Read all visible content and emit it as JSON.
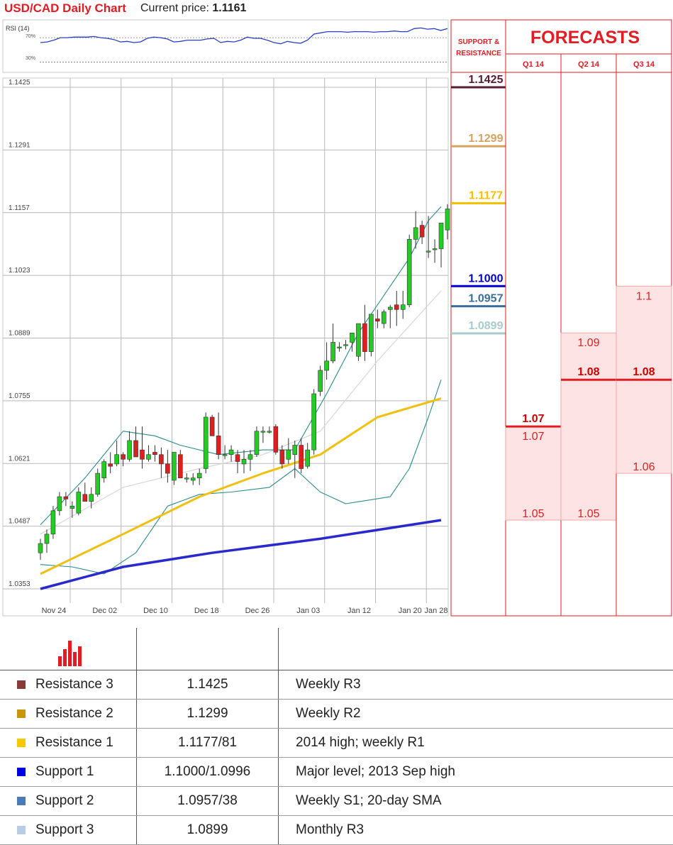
{
  "header": {
    "title": "USD/CAD Daily Chart",
    "price_label": "Current price:",
    "price_value": "1.1161"
  },
  "colors": {
    "accent": "#e31b23",
    "resistance_3": "#5a1a30",
    "resistance_2": "#d4a45e",
    "resistance_1": "#f5c000",
    "support_1": "#0000c8",
    "support_2": "#3a6e9a",
    "support_3": "#a8cccc",
    "sma_slow": "#2a2acc",
    "sma_mid": "#f0c010",
    "bull": "#22cc22",
    "bear": "#dd1f1f"
  },
  "rsi": {
    "label": "RSI (14)",
    "levels": [
      "70%",
      "30%"
    ],
    "values": [
      62,
      63,
      66,
      70,
      70,
      71,
      71,
      71,
      72,
      70,
      69,
      67,
      63,
      64,
      62,
      63,
      69,
      71,
      70,
      68,
      63,
      64,
      66,
      66,
      66,
      68,
      69,
      62,
      64,
      63,
      66,
      71,
      69,
      69,
      66,
      62,
      60,
      64,
      62,
      61,
      66,
      76,
      78,
      80,
      80,
      80,
      79,
      80,
      80,
      80,
      79,
      80,
      80,
      81,
      80,
      80,
      85,
      86,
      84,
      85,
      82,
      85
    ]
  },
  "chart_data": {
    "type": "candlestick",
    "title": "USD/CAD Daily Chart",
    "x_tick_labels": [
      "Nov 24",
      "Dec 02",
      "Dec 10",
      "Dec 18",
      "Dec 26",
      "Jan 03",
      "Jan 12",
      "Jan 20",
      "Jan 28"
    ],
    "y_tick_labels": [
      "1.1425",
      "1.1291",
      "1.1157",
      "1.1023",
      "1.0889",
      "1.0755",
      "1.0621",
      "1.0487",
      "1.0353"
    ],
    "ylim": [
      1.0353,
      1.1425
    ],
    "grid": true,
    "candles": [
      [
        1.043,
        1.046,
        1.0415,
        1.045
      ],
      [
        1.045,
        1.048,
        1.043,
        1.047
      ],
      [
        1.047,
        1.053,
        1.046,
        1.052
      ],
      [
        1.052,
        1.056,
        1.051,
        1.055
      ],
      [
        1.055,
        1.056,
        1.053,
        1.0545
      ],
      [
        1.0525,
        1.054,
        1.0505,
        1.053
      ],
      [
        1.0515,
        1.057,
        1.051,
        1.056
      ],
      [
        1.0555,
        1.058,
        1.0545,
        1.054
      ],
      [
        1.054,
        1.057,
        1.0525,
        1.0555
      ],
      [
        1.0555,
        1.061,
        1.055,
        1.06
      ],
      [
        1.059,
        1.063,
        1.058,
        1.0625
      ],
      [
        1.062,
        1.0645,
        1.06,
        1.0615
      ],
      [
        1.062,
        1.067,
        1.0615,
        1.064
      ],
      [
        1.064,
        1.0645,
        1.0615,
        1.063
      ],
      [
        1.063,
        1.069,
        1.0625,
        1.067
      ],
      [
        1.067,
        1.07,
        1.064,
        1.0635
      ],
      [
        1.065,
        1.07,
        1.061,
        1.063
      ],
      [
        1.063,
        1.066,
        1.0625,
        1.064
      ],
      [
        1.0645,
        1.066,
        1.0625,
        1.064
      ],
      [
        1.064,
        1.0655,
        1.059,
        1.062
      ],
      [
        1.062,
        1.065,
        1.058,
        1.06
      ],
      [
        1.0585,
        1.064,
        1.0575,
        1.0645
      ],
      [
        1.064,
        1.065,
        1.059,
        1.059
      ],
      [
        1.059,
        1.06,
        1.058,
        1.059
      ],
      [
        1.0585,
        1.06,
        1.0575,
        1.059
      ],
      [
        1.059,
        1.061,
        1.0575,
        1.06
      ],
      [
        1.061,
        1.073,
        1.06,
        1.072
      ],
      [
        1.072,
        1.0725,
        1.068,
        1.068
      ],
      [
        1.068,
        1.073,
        1.063,
        1.064
      ],
      [
        1.064,
        1.066,
        1.063,
        1.064
      ],
      [
        1.064,
        1.066,
        1.0625,
        1.065
      ],
      [
        1.064,
        1.065,
        1.06,
        1.0625
      ],
      [
        1.062,
        1.065,
        1.06,
        1.063
      ],
      [
        1.063,
        1.065,
        1.0605,
        1.064
      ],
      [
        1.064,
        1.07,
        1.0635,
        1.069
      ],
      [
        1.069,
        1.07,
        1.0665,
        1.069
      ],
      [
        1.069,
        1.07,
        1.0685,
        1.069
      ],
      [
        1.07,
        1.0705,
        1.064,
        1.0645
      ],
      [
        1.065,
        1.066,
        1.061,
        1.062
      ],
      [
        1.063,
        1.0675,
        1.062,
        1.065
      ],
      [
        1.064,
        1.067,
        1.059,
        1.066
      ],
      [
        1.066,
        1.0675,
        1.06,
        1.061
      ],
      [
        1.0615,
        1.0665,
        1.061,
        1.065
      ],
      [
        1.065,
        1.078,
        1.064,
        1.077
      ],
      [
        1.0775,
        1.083,
        1.0765,
        1.082
      ],
      [
        1.082,
        1.088,
        1.08,
        1.084
      ],
      [
        1.084,
        1.092,
        1.0835,
        1.088
      ],
      [
        1.087,
        1.088,
        1.086,
        1.087
      ],
      [
        1.0875,
        1.0885,
        1.0865,
        1.0875
      ],
      [
        1.088,
        1.09,
        1.086,
        1.09
      ],
      [
        1.085,
        1.092,
        1.084,
        1.092
      ],
      [
        1.092,
        1.096,
        1.084,
        1.086
      ],
      [
        1.086,
        1.093,
        1.085,
        1.094
      ],
      [
        1.093,
        1.095,
        1.091,
        1.0925
      ],
      [
        1.092,
        1.095,
        1.091,
        1.0945
      ],
      [
        1.095,
        1.096,
        1.091,
        1.0955
      ],
      [
        1.096,
        1.099,
        1.0915,
        1.095
      ],
      [
        1.095,
        1.099,
        1.093,
        1.096
      ],
      [
        1.096,
        1.111,
        1.0955,
        1.11
      ],
      [
        1.11,
        1.116,
        1.108,
        1.1125
      ],
      [
        1.113,
        1.114,
        1.109,
        1.1105
      ],
      [
        1.1075,
        1.115,
        1.106,
        1.1075
      ],
      [
        1.108,
        1.11,
        1.105,
        1.108
      ],
      [
        1.108,
        1.113,
        1.104,
        1.1135
      ],
      [
        1.112,
        1.1175,
        1.11,
        1.1165
      ]
    ],
    "sma_slow": [
      [
        0,
        1.0353
      ],
      [
        13,
        1.04
      ],
      [
        27,
        1.043
      ],
      [
        44,
        1.046
      ],
      [
        63,
        1.05
      ]
    ],
    "sma_mid": [
      [
        0,
        1.0385
      ],
      [
        13,
        1.047
      ],
      [
        25,
        1.055
      ],
      [
        35,
        1.06
      ],
      [
        44,
        1.064
      ],
      [
        53,
        1.072
      ],
      [
        63,
        1.076
      ]
    ],
    "sma_grey": [
      [
        0,
        1.047
      ],
      [
        13,
        1.057
      ],
      [
        25,
        1.061
      ],
      [
        35,
        1.064
      ],
      [
        44,
        1.069
      ],
      [
        53,
        1.084
      ],
      [
        63,
        1.099
      ]
    ],
    "bb_upper": [
      [
        0,
        1.049
      ],
      [
        7,
        1.059
      ],
      [
        13,
        1.069
      ],
      [
        18,
        1.068
      ],
      [
        22,
        1.066
      ],
      [
        28,
        1.064
      ],
      [
        35,
        1.065
      ],
      [
        40,
        1.065
      ],
      [
        45,
        1.077
      ],
      [
        50,
        1.09
      ],
      [
        54,
        1.098
      ],
      [
        58,
        1.106
      ],
      [
        61,
        1.114
      ],
      [
        63,
        1.117
      ]
    ],
    "bb_lower": [
      [
        0,
        1.0405
      ],
      [
        5,
        1.04
      ],
      [
        10,
        1.0385
      ],
      [
        15,
        1.043
      ],
      [
        20,
        1.053
      ],
      [
        25,
        1.0555
      ],
      [
        30,
        1.056
      ],
      [
        36,
        1.057
      ],
      [
        40,
        1.061
      ],
      [
        44,
        1.056
      ],
      [
        48,
        1.0535
      ],
      [
        55,
        1.055
      ],
      [
        58,
        1.061
      ],
      [
        61,
        1.072
      ],
      [
        63,
        1.08
      ]
    ]
  },
  "levels_panel": {
    "title": "SUPPORT & RESISTANCE",
    "levels": [
      {
        "name": "Resistance 3",
        "value": "1.1425",
        "color": "#5a1a30"
      },
      {
        "name": "Resistance 2",
        "value": "1.1299",
        "color": "#d4a45e"
      },
      {
        "name": "Resistance 1",
        "value": "1.1177",
        "color": "#f5c000"
      },
      {
        "name": "Support 1",
        "value": "1.1000",
        "color": "#0000c8"
      },
      {
        "name": "Support 2",
        "value": "1.0957",
        "color": "#3a6e9a"
      },
      {
        "name": "Support 3",
        "value": "1.0899",
        "color": "#a8cccc"
      }
    ]
  },
  "forecasts": {
    "title": "FORECASTS",
    "columns": [
      {
        "label": "Q1 14",
        "median": "1.07",
        "median_value": 1.07,
        "high": "1.07",
        "high_value": 1.07,
        "low": "1.05",
        "low_value": 1.05
      },
      {
        "label": "Q2 14",
        "median": "1.08",
        "median_value": 1.08,
        "high": "1.09",
        "high_value": 1.09,
        "low": "1.05",
        "low_value": 1.05
      },
      {
        "label": "Q3 14",
        "median": "1.08",
        "median_value": 1.08,
        "high": "1.1",
        "high_value": 1.1,
        "low": "1.06",
        "low_value": 1.06
      }
    ]
  },
  "table": {
    "rows": [
      {
        "name": "Resistance 3",
        "value": "1.1425",
        "note": "Weekly R3",
        "color": "#8b3a3a"
      },
      {
        "name": "Resistance 2",
        "value": "1.1299",
        "note": "Weekly R2",
        "color": "#c8960a"
      },
      {
        "name": "Resistance 1",
        "value": "1.1177/81",
        "note": "2014 high; weekly R1",
        "color": "#f5c800"
      },
      {
        "name": "Support 1",
        "value": "1.1000/1.0996",
        "note": "Major level; 2013 Sep high",
        "color": "#0000e0"
      },
      {
        "name": "Support 2",
        "value": "1.0957/38",
        "note": "Weekly S1; 20-day SMA",
        "color": "#4a7ab8"
      },
      {
        "name": "Support 3",
        "value": "1.0899",
        "note": "Monthly R3",
        "color": "#b8cce4"
      }
    ]
  }
}
